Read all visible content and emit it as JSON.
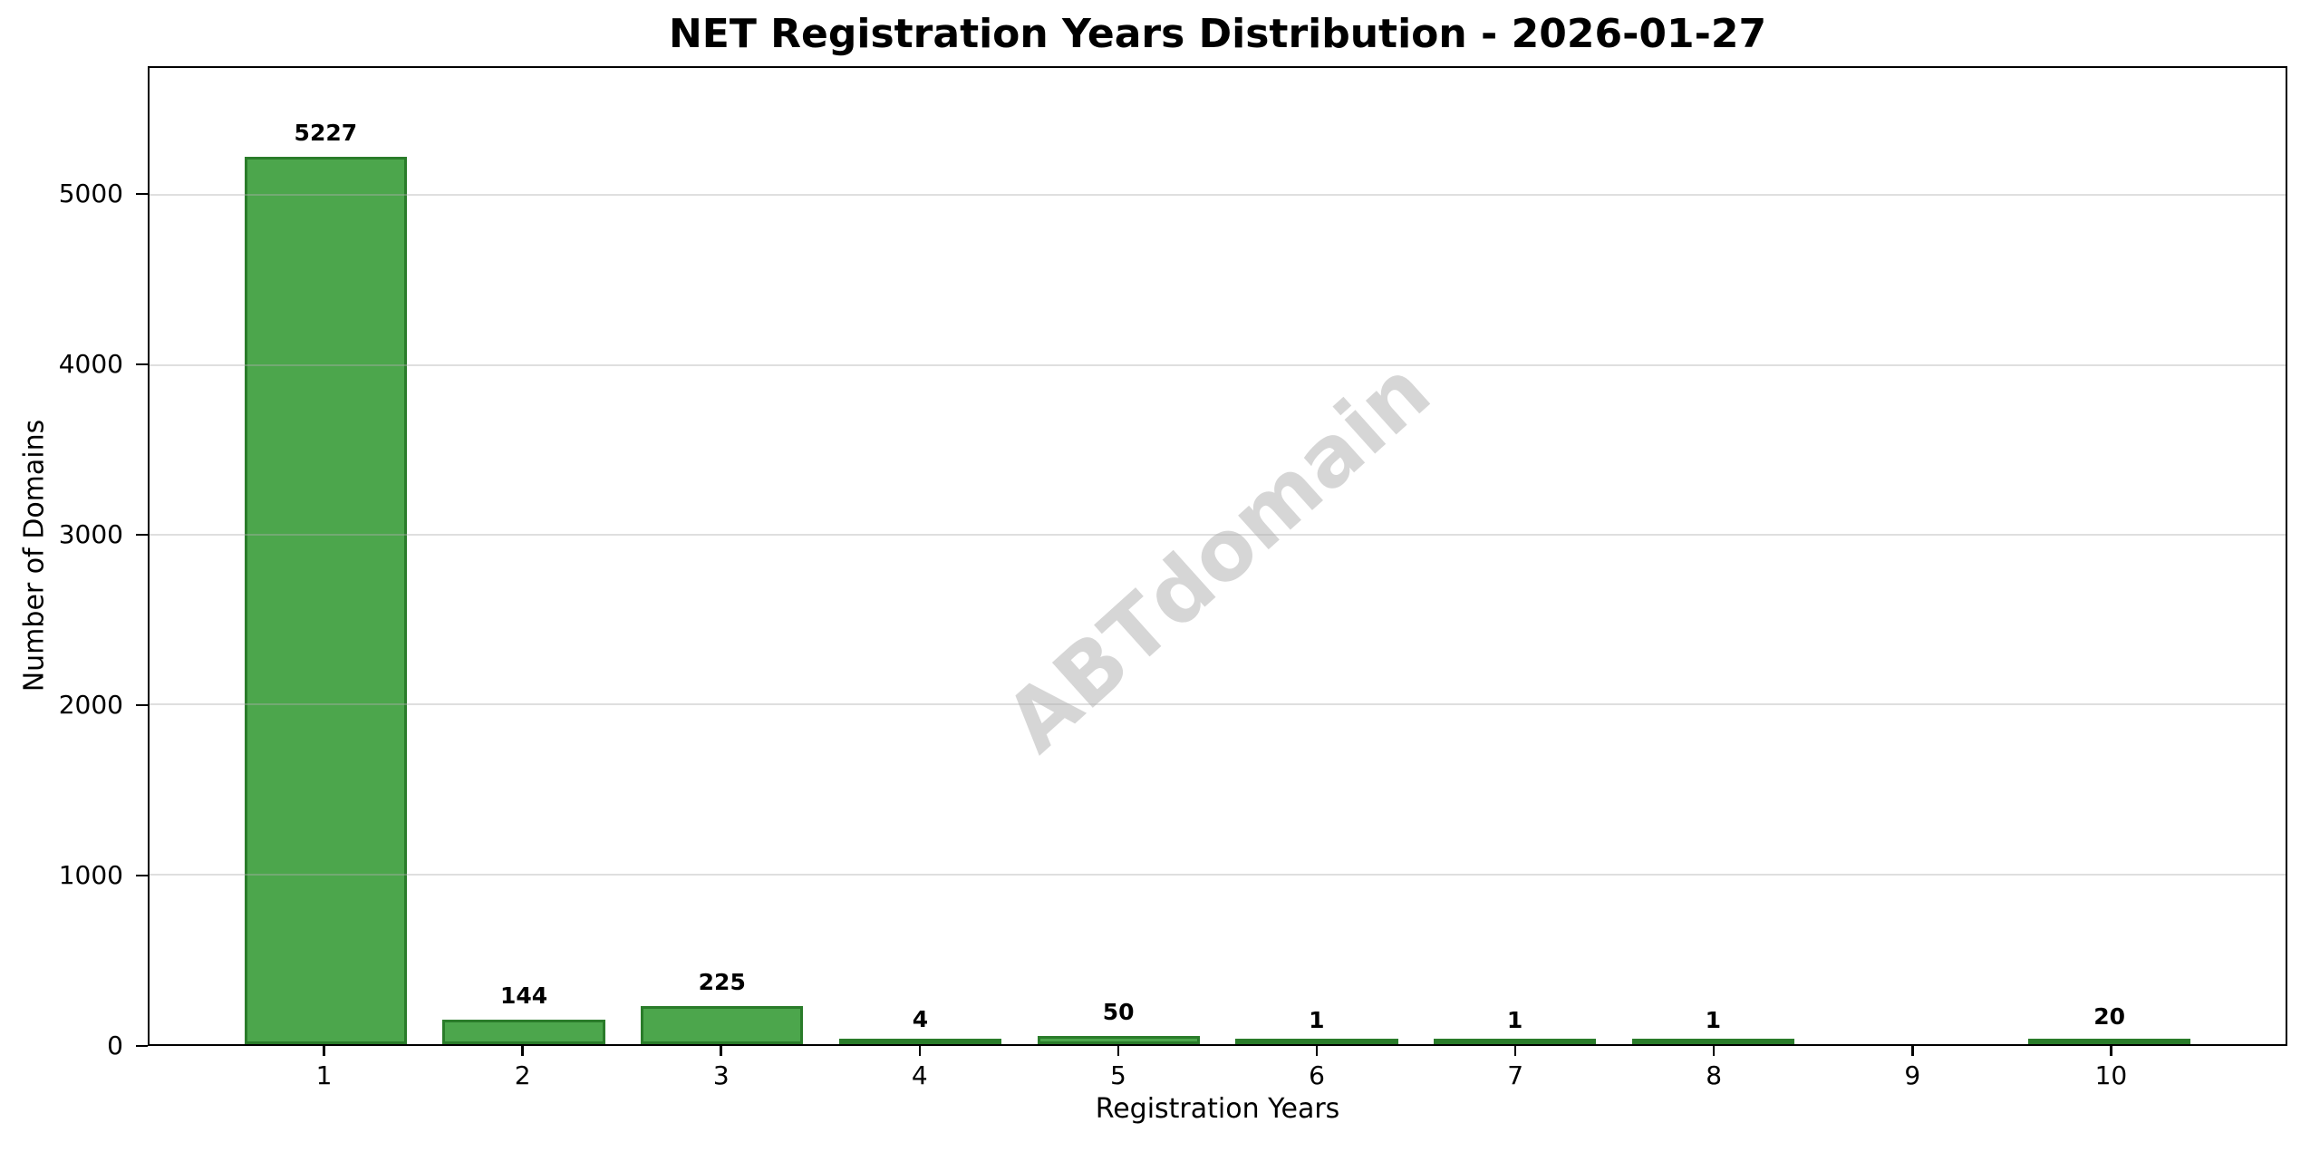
{
  "chart_data": {
    "type": "bar",
    "title": "NET Registration Years Distribution - 2026-01-27",
    "xlabel": "Registration Years",
    "ylabel": "Number of Domains",
    "categories": [
      "1",
      "2",
      "3",
      "4",
      "5",
      "6",
      "7",
      "8",
      "9",
      "10"
    ],
    "values": [
      5227,
      144,
      225,
      4,
      50,
      1,
      1,
      1,
      0,
      20
    ],
    "bar_labels": [
      "5227",
      "144",
      "225",
      "4",
      "50",
      "1",
      "1",
      "1",
      "",
      "20"
    ],
    "ylim": [
      0,
      5750
    ],
    "yticks": [
      0,
      1000,
      2000,
      3000,
      4000,
      5000
    ],
    "grid": "horizontal-only",
    "legend": "none",
    "bar_color": "#4ca64c",
    "bar_edge_color": "#2a7c2a",
    "watermark": "ABTdomain",
    "watermark_color": "#d6d6d6"
  }
}
